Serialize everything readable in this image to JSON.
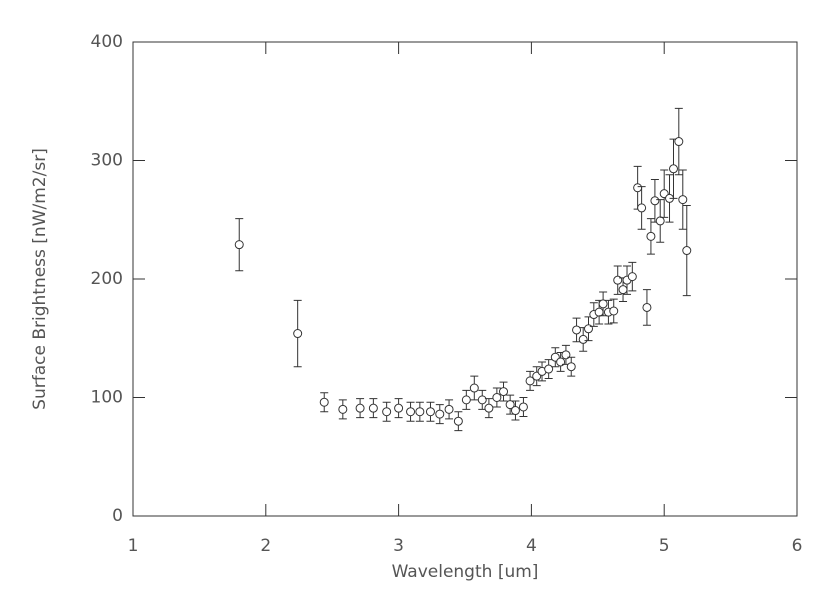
{
  "chart_data": {
    "type": "scatter",
    "xlabel": "Wavelength [um]",
    "ylabel": "Surface Brightness [nW/m2/sr]",
    "xlim": [
      1,
      6
    ],
    "xticks": [
      1,
      2,
      3,
      4,
      5,
      6
    ],
    "ylim": [
      0,
      400
    ],
    "yticks": [
      0,
      100,
      200,
      300,
      400
    ],
    "color": "#333333",
    "x": [
      1.8,
      2.24,
      2.44,
      2.58,
      2.71,
      2.81,
      2.91,
      3.0,
      3.09,
      3.16,
      3.24,
      3.31,
      3.38,
      3.45,
      3.51,
      3.57,
      3.63,
      3.68,
      3.74,
      3.79,
      3.84,
      3.88,
      3.94,
      3.99,
      4.04,
      4.08,
      4.13,
      4.18,
      4.22,
      4.26,
      4.3,
      4.34,
      4.39,
      4.43,
      4.47,
      4.51,
      4.54,
      4.58,
      4.62,
      4.65,
      4.69,
      4.72,
      4.76,
      4.8,
      4.83,
      4.87,
      4.9,
      4.93,
      4.97,
      5.0,
      5.04,
      5.07,
      5.11,
      5.14,
      5.17
    ],
    "values": [
      229,
      154,
      96,
      90,
      91,
      91,
      88,
      91,
      88,
      88,
      88,
      86,
      90,
      80,
      98,
      108,
      98,
      91,
      100,
      105,
      94,
      89,
      92,
      114,
      118,
      122,
      124,
      134,
      130,
      136,
      126,
      157,
      149,
      158,
      170,
      172,
      179,
      172,
      173,
      199,
      191,
      199,
      202,
      277,
      260,
      176,
      236,
      266,
      249,
      272,
      268,
      293,
      316,
      267,
      224
    ],
    "errors": [
      22,
      28,
      8,
      8,
      8,
      8,
      8,
      8,
      8,
      8,
      8,
      8,
      8,
      8,
      8,
      10,
      8,
      8,
      8,
      8,
      8,
      8,
      8,
      8,
      8,
      8,
      8,
      8,
      8,
      8,
      8,
      10,
      10,
      10,
      10,
      10,
      10,
      10,
      10,
      12,
      10,
      12,
      12,
      18,
      18,
      15,
      15,
      18,
      18,
      20,
      20,
      25,
      28,
      25,
      38
    ]
  }
}
